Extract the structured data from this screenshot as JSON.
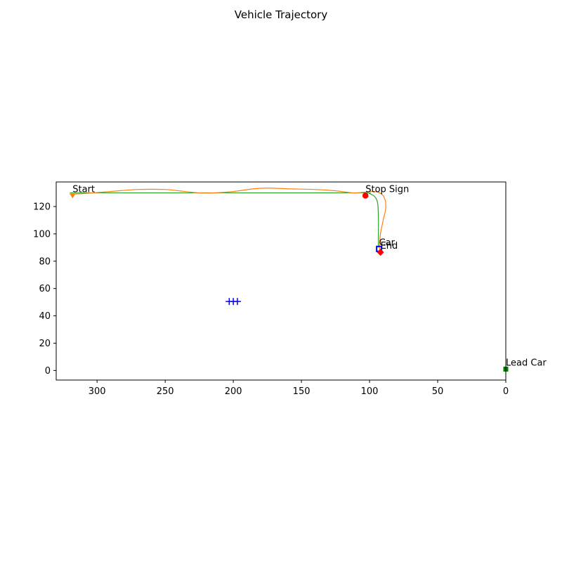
{
  "chart_data": {
    "type": "scatter",
    "title": "Vehicle Trajectory",
    "xlabel": "",
    "ylabel": "",
    "xlim": [
      330,
      0
    ],
    "ylim": [
      -7,
      138
    ],
    "x_inverted": true,
    "grid": false,
    "x_ticks": [
      300,
      250,
      200,
      150,
      100,
      50,
      0
    ],
    "y_ticks": [
      0,
      20,
      40,
      60,
      80,
      100,
      120
    ],
    "series": [
      {
        "kind": "line",
        "color": "#2ca02c",
        "points": [
          [
            320,
            130
          ],
          [
            300,
            130
          ],
          [
            250,
            130
          ],
          [
            200,
            130
          ],
          [
            150,
            130
          ],
          [
            104,
            130
          ],
          [
            100,
            129.5
          ],
          [
            96,
            127
          ],
          [
            94,
            122
          ],
          [
            93.5,
            110
          ],
          [
            93.5,
            100
          ],
          [
            93.5,
            90
          ]
        ]
      },
      {
        "kind": "line",
        "color": "#ff7f0e",
        "points": [
          [
            320,
            129
          ],
          [
            310,
            129.5
          ],
          [
            290,
            131
          ],
          [
            270,
            132.5
          ],
          [
            250,
            132.5
          ],
          [
            240,
            131.5
          ],
          [
            225,
            130
          ],
          [
            215,
            130
          ],
          [
            200,
            131
          ],
          [
            185,
            133
          ],
          [
            175,
            133.5
          ],
          [
            160,
            133
          ],
          [
            140,
            132.5
          ],
          [
            125,
            131.5
          ],
          [
            112,
            130
          ],
          [
            104,
            130.5
          ],
          [
            96,
            131
          ],
          [
            90,
            128
          ],
          [
            88,
            120
          ],
          [
            90,
            110
          ],
          [
            92,
            100
          ],
          [
            92.5,
            93
          ],
          [
            92.5,
            87
          ]
        ]
      }
    ],
    "markers": [
      {
        "label": "Start",
        "x": 318,
        "y": 128,
        "shape": "triangle-down",
        "color": "#ff7f0e"
      },
      {
        "label": "Stop Sign",
        "x": 103,
        "y": 128,
        "shape": "octagon",
        "color": "#ff0000"
      },
      {
        "label": "Car",
        "x": 93,
        "y": 89,
        "shape": "square-open",
        "color": "#0000ff"
      },
      {
        "label": "End",
        "x": 92,
        "y": 86.5,
        "shape": "diamond",
        "color": "#ff0000"
      },
      {
        "label": "Lead Car",
        "x": 0,
        "y": 1,
        "shape": "square",
        "color": "#008000"
      }
    ],
    "obstacles": {
      "color": "#0000ff",
      "shape": "plus",
      "points": [
        [
          203,
          50.5
        ],
        [
          200,
          50.5
        ],
        [
          197,
          50.5
        ]
      ]
    }
  }
}
